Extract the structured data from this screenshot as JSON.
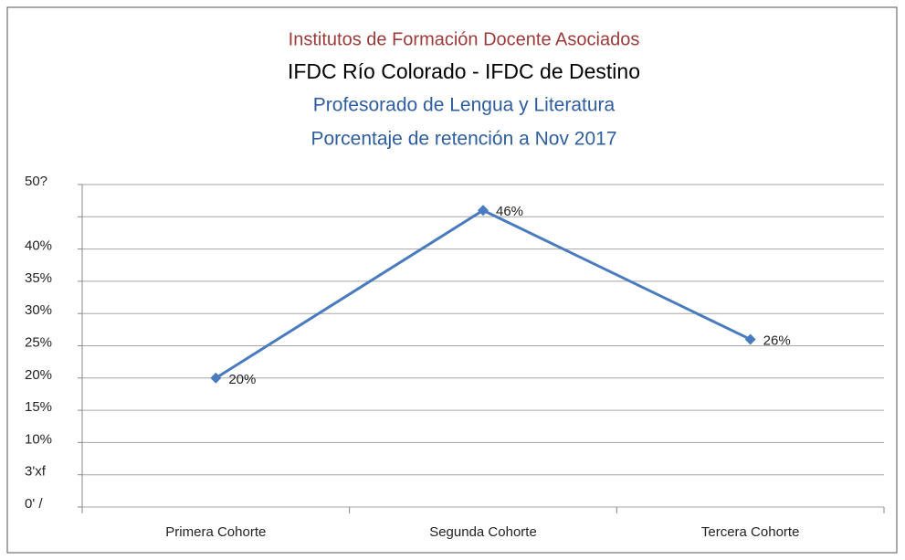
{
  "chart_data": {
    "type": "line",
    "title": "Institutos  de  Formación  Docente  Asociados",
    "subtitles": [
      "IFDC Río Colorado - IFDC de Destino",
      "Profesorado de Lengua y Literatura",
      "Porcentaje de retención a Nov 2017"
    ],
    "categories": [
      "Primera  Cohorte",
      "Segunda  Cohorte",
      "Tercera Cohorte"
    ],
    "series": [
      {
        "color": "#4a7bbf",
        "values": [
          20,
          46,
          26
        ],
        "value_labels": [
          "20%",
          "46%",
          "26%"
        ]
      }
    ],
    "ylim": [
      0,
      50
    ],
    "yticks": [
      {
        "value": 0,
        "label": "0' /"
      },
      {
        "value": 5,
        "label": "3'xf"
      },
      {
        "value": 10,
        "label": "10%"
      },
      {
        "value": 15,
        "label": "15%"
      },
      {
        "value": 20,
        "label": "20%"
      },
      {
        "value": 25,
        "label": "25%"
      },
      {
        "value": 30,
        "label": "30%"
      },
      {
        "value": 35,
        "label": "35%"
      },
      {
        "value": 40,
        "label": "40%"
      },
      {
        "value": 45
      },
      {
        "value": 50,
        "label": "50?"
      }
    ],
    "grid": true
  }
}
